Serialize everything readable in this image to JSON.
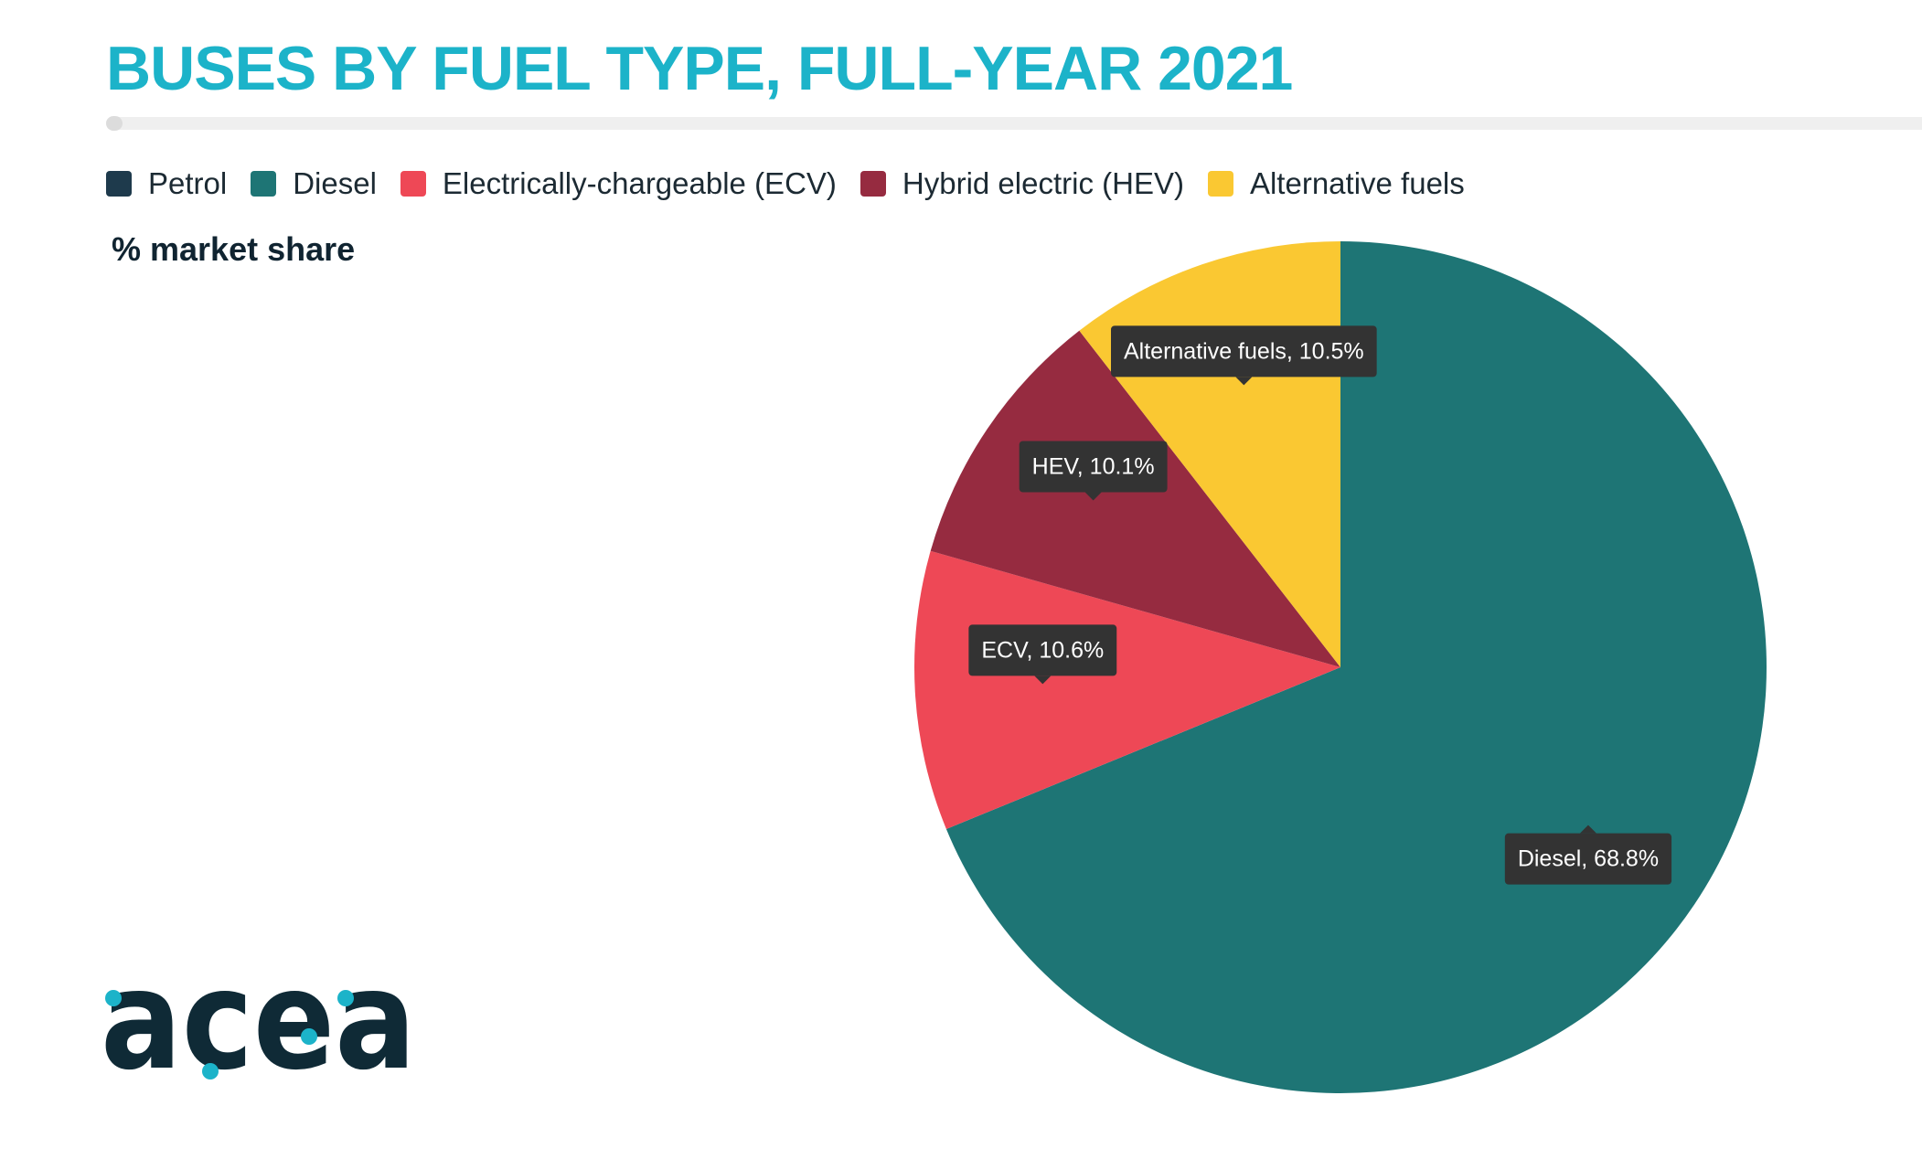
{
  "header": {
    "title": "BUSES BY FUEL TYPE, FULL-YEAR 2021"
  },
  "legend": {
    "items": [
      {
        "label": "Petrol",
        "color": "#1e3a4c"
      },
      {
        "label": "Diesel",
        "color": "#1e7575"
      },
      {
        "label": "Electrically-chargeable (ECV)",
        "color": "#ee4856"
      },
      {
        "label": "Hybrid electric (HEV)",
        "color": "#962b40"
      },
      {
        "label": "Alternative fuels",
        "color": "#fac832"
      }
    ]
  },
  "chart_data": {
    "type": "pie",
    "subtitle": "% market share",
    "unit": "%",
    "slices": [
      {
        "name": "Diesel",
        "value": 68.8,
        "label": "Diesel, 68.8%",
        "color": "#1e7575"
      },
      {
        "name": "ECV",
        "value": 10.6,
        "label": "ECV, 10.6%",
        "color": "#ee4856"
      },
      {
        "name": "HEV",
        "value": 10.1,
        "label": "HEV, 10.1%",
        "color": "#962b40"
      },
      {
        "name": "Alternative fuels",
        "value": 10.5,
        "label": "Alternative fuels, 10.5%",
        "color": "#fac832"
      }
    ],
    "legend_position": "top-left",
    "start_angle_deg": 0,
    "direction": "clockwise"
  },
  "logo": {
    "text": "acea",
    "dark_color": "#0f2a36",
    "dot_color": "#1cb3c9",
    "icon": "acea-logo"
  }
}
